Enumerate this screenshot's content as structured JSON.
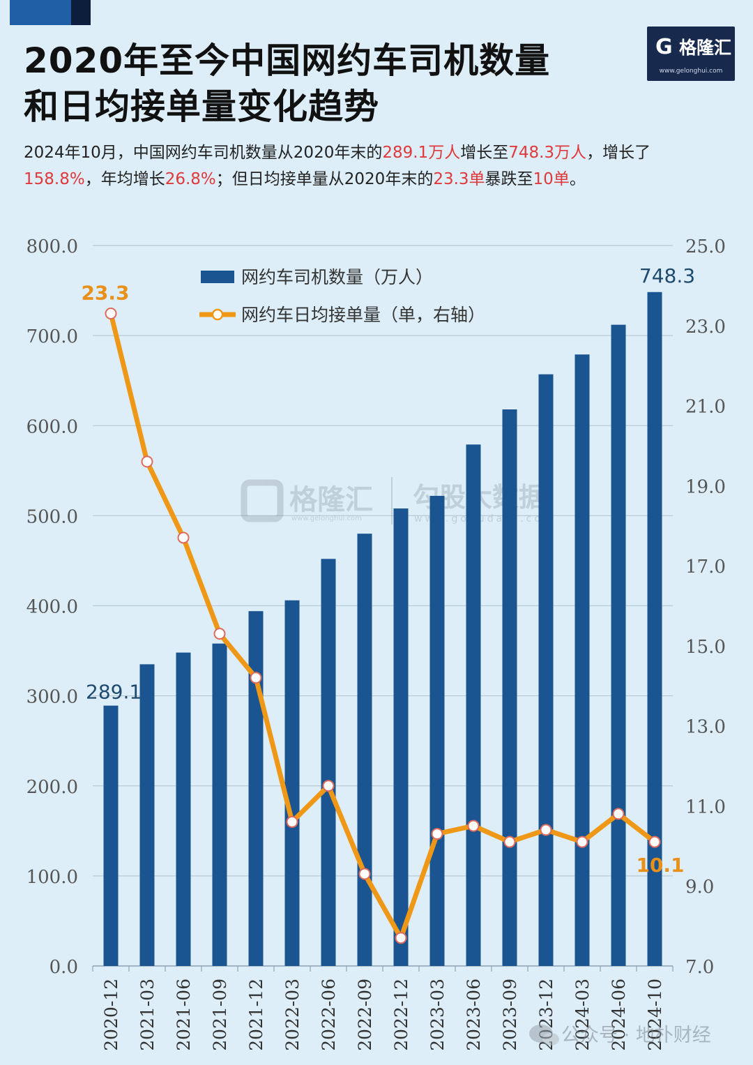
{
  "header": {
    "title_line1": "2020年至今中国网约车司机数量",
    "title_line2": "和日均接单量变化趋势",
    "logo_text": "格隆汇",
    "logo_url": "www.gelonghui.com"
  },
  "summary": {
    "p1": "2024年10月，中国网约车司机数量从2020年末的",
    "v1": "289.1万人",
    "p2": "增长至",
    "v2": "748.3万人",
    "p3": "，增长了",
    "v3": "158.8%",
    "p4": "，年均增长",
    "v4": "26.8%",
    "p5": "；但日均接单量从2020年末的",
    "v5": "23.3单",
    "p6": "暴跌至",
    "v6": "10单",
    "p7": "。"
  },
  "watermark": {
    "left_name": "格隆汇",
    "left_url": "www.gelonghui.com",
    "right_name": "勾股大数据",
    "right_url": "www.gogudata.com"
  },
  "footer": {
    "wechat_label": "公众号 · 地朴财经"
  },
  "colors": {
    "bar": "#1a5592",
    "line": "#ef9716",
    "line_label": "#e8901a",
    "bar_label": "#1e4a6e",
    "highlight": "#e0393b"
  },
  "chart_data": {
    "type": "bar+line",
    "categories": [
      "2020-12",
      "2021-03",
      "2021-06",
      "2021-09",
      "2021-12",
      "2022-03",
      "2022-06",
      "2022-09",
      "2022-12",
      "2023-03",
      "2023-06",
      "2023-09",
      "2023-12",
      "2024-03",
      "2024-06",
      "2024-10"
    ],
    "series": [
      {
        "name": "网约车司机数量（万人）",
        "type": "bar",
        "axis": "left",
        "values": [
          289.1,
          335,
          348,
          358,
          394,
          406,
          452,
          480,
          508,
          522,
          579,
          618,
          657,
          679,
          712,
          748.3
        ]
      },
      {
        "name": "网约车日均接单量（单，右轴）",
        "type": "line",
        "axis": "right",
        "values": [
          23.3,
          19.6,
          17.7,
          15.3,
          14.2,
          10.6,
          11.5,
          9.3,
          7.7,
          10.3,
          10.5,
          10.1,
          10.4,
          10.1,
          10.8,
          10.1
        ]
      }
    ],
    "left_axis": {
      "ylim": [
        0,
        800
      ],
      "ticks": [
        "0.0",
        "100.0",
        "200.0",
        "300.0",
        "400.0",
        "500.0",
        "600.0",
        "700.0",
        "800.0"
      ]
    },
    "right_axis": {
      "ylim": [
        7,
        25
      ],
      "ticks": [
        "7.0",
        "9.0",
        "11.0",
        "13.0",
        "15.0",
        "17.0",
        "19.0",
        "21.0",
        "23.0",
        "25.0"
      ]
    },
    "data_labels": {
      "bar_first": "289.1",
      "bar_last": "748.3",
      "line_first": "23.3",
      "line_last": "10.1"
    },
    "grid": true,
    "legend_position": "top-center"
  }
}
